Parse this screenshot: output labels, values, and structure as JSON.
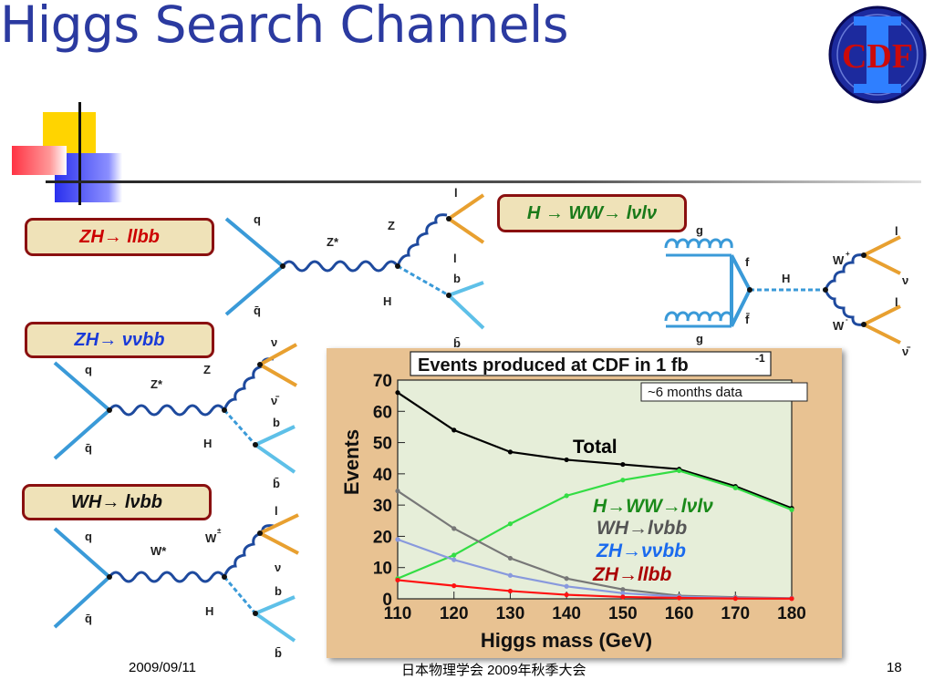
{
  "slide": {
    "title": "Higgs Search Channels",
    "footer_date": "2009/09/11",
    "footer_center": "日本物理学会 2009年秋季大会",
    "page_number": "18",
    "logo_text": "CDF"
  },
  "channels": [
    {
      "id": "zh_llbb",
      "label": "ZH→ llbb",
      "color": "#cc0000"
    },
    {
      "id": "zh_vvbb",
      "label": "ZH→ ννbb",
      "color": "#1a3ad8"
    },
    {
      "id": "wh_lvbb",
      "label": "WH→ lνbb",
      "color": "#111111"
    },
    {
      "id": "h_ww",
      "label": "H → WW→ lνlν",
      "color": "#1a7a1a"
    }
  ],
  "diagram_labels": {
    "q": "q",
    "qbar": "q̄",
    "zstar": "Z*",
    "z": "Z",
    "wstar": "W*",
    "wpm": "W",
    "h": "H",
    "l": "l",
    "b": "b",
    "bbar": "b̄",
    "nu": "ν",
    "nubar": "ν̄",
    "g": "g",
    "f": "f",
    "fbar": "f̄",
    "wplus": "W",
    "wminus": "W"
  },
  "chart_data": {
    "type": "line",
    "title": "Events produced at CDF in 1 fb",
    "title_sup": "-1",
    "annotation": "~6 months data",
    "xlabel": "Higgs mass (GeV)",
    "ylabel": "Events",
    "xlim": [
      110,
      180
    ],
    "ylim": [
      0,
      70
    ],
    "xticks": [
      110,
      120,
      130,
      140,
      150,
      160,
      170,
      180
    ],
    "yticks": [
      0,
      10,
      20,
      30,
      40,
      50,
      60,
      70
    ],
    "x": [
      110,
      120,
      130,
      140,
      150,
      160,
      170,
      180
    ],
    "series": [
      {
        "name": "Total",
        "color": "#000000",
        "values": [
          66,
          54,
          47,
          44.5,
          43,
          41.5,
          36,
          29
        ]
      },
      {
        "name": "H→WW→lνlν",
        "color": "#33dd44",
        "values": [
          6.5,
          14,
          24,
          33,
          38,
          41,
          35.5,
          28.5
        ]
      },
      {
        "name": "WH→lνbb",
        "color": "#777777",
        "values": [
          34.5,
          22.5,
          13,
          6.5,
          3,
          1,
          0.5,
          0.2
        ]
      },
      {
        "name": "ZH→ννbb",
        "color": "#8899dd",
        "values": [
          19,
          12.5,
          7.5,
          4,
          1.8,
          0.7,
          0.3,
          0.1
        ]
      },
      {
        "name": "ZH→llbb",
        "color": "#ff1111",
        "values": [
          6,
          4.2,
          2.5,
          1.3,
          0.6,
          0.3,
          0.1,
          0.05
        ]
      }
    ],
    "labels": [
      {
        "text": "Total",
        "color": "#000000"
      },
      {
        "text": "H→WW→lνlν",
        "color": "#1a8a1a"
      },
      {
        "text": "WH→lνbb",
        "color": "#555555"
      },
      {
        "text": "ZH→ννbb",
        "color": "#1a6aee"
      },
      {
        "text": "ZH→llbb",
        "color": "#aa0000"
      }
    ]
  }
}
